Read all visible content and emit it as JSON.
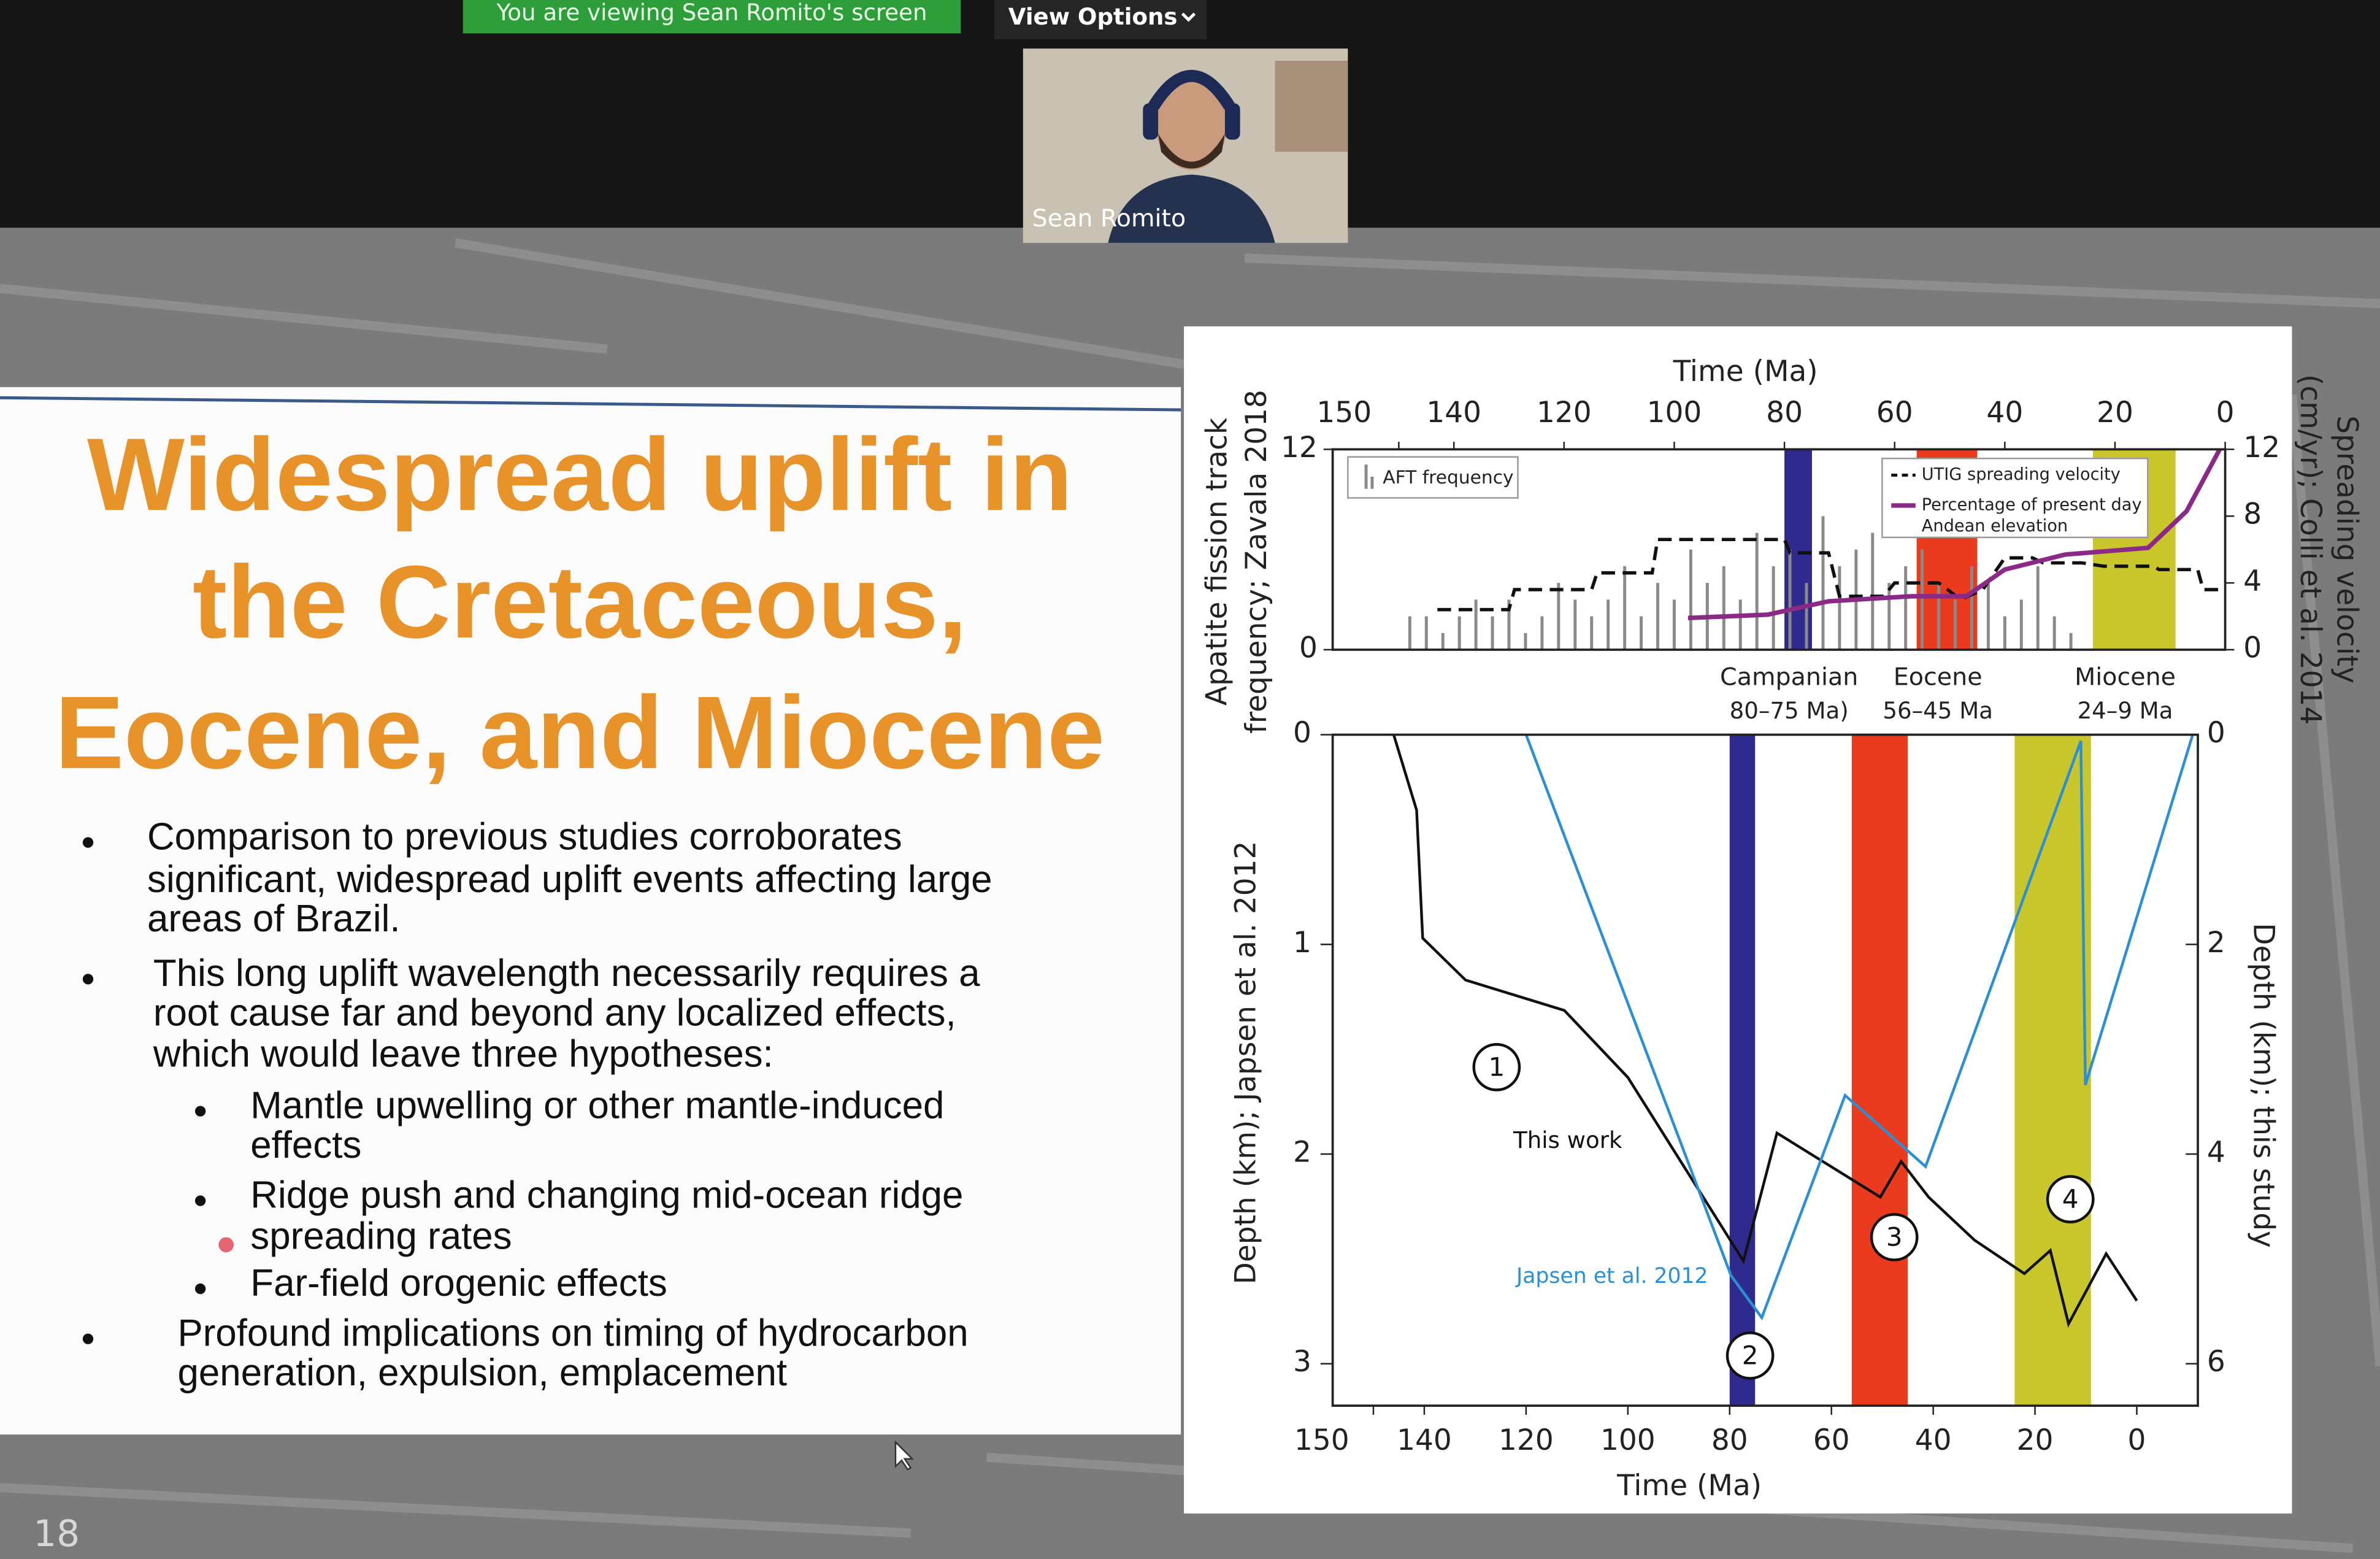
{
  "zoom": {
    "banner": "You are viewing Sean Romito's screen",
    "view_options": "View Options",
    "participant": "Sean Romito"
  },
  "slide": {
    "title_lines": [
      "Widespread uplift in",
      "the Cretaceous,",
      "Eocene, and Miocene"
    ],
    "bullets": [
      {
        "level": 1,
        "lines": [
          "Comparison to previous studies corroborates",
          "significant, widespread uplift events affecting large",
          "areas of Brazil."
        ]
      },
      {
        "level": 1,
        "lines": [
          "This long uplift wavelength necessarily requires a",
          "root cause far and beyond any localized effects,",
          "which would leave three hypotheses:"
        ]
      },
      {
        "level": 2,
        "lines": [
          "Mantle upwelling or other mantle-induced",
          "effects"
        ]
      },
      {
        "level": 2,
        "lines": [
          "Ridge push and changing mid-ocean ridge",
          "spreading rates"
        ]
      },
      {
        "level": 2,
        "lines": [
          "Far-field orogenic effects"
        ]
      },
      {
        "level": 1,
        "lines": [
          "Profound implications on timing of hydrocarbon",
          "generation, expulsion, emplacement"
        ]
      }
    ],
    "page_number": "18"
  },
  "chart_data": [
    {
      "type": "bar_line",
      "xlabel": "Time (Ma)",
      "ylabel": [
        "Apatite fission track",
        "frequency; Zavala 2018"
      ],
      "y2label": [
        "Spreading velocity",
        "(cm/yr); Colli et al. 2014"
      ],
      "xlim": [
        162,
        0
      ],
      "xticks": [
        150,
        140,
        120,
        100,
        80,
        60,
        40,
        20,
        0
      ],
      "ylim": [
        0,
        12
      ],
      "yticks": [
        0,
        12
      ],
      "y2lim": [
        0,
        12
      ],
      "y2ticks": [
        0,
        4,
        8,
        12
      ],
      "bands": [
        {
          "name": "Campanian",
          "range_label": "80–75 Ma)",
          "start": 80,
          "end": 75,
          "color": "#2f2a8e"
        },
        {
          "name": "Eocene",
          "range_label": "56–45 Ma",
          "start": 56,
          "end": 45,
          "color": "#ea3b1f"
        },
        {
          "name": "Miocene",
          "range_label": "24–9 Ma",
          "start": 24,
          "end": 9,
          "color": "#c9c62c"
        }
      ],
      "series": [
        {
          "name": "AFT frequency",
          "kind": "bar",
          "color": "#8a8a8a",
          "x": [
            148,
            145,
            142,
            139,
            136,
            133,
            130,
            127,
            124,
            121,
            118,
            115,
            112,
            109,
            106,
            103,
            100,
            97,
            94,
            91,
            88,
            85,
            82,
            79,
            76,
            73,
            70,
            67,
            64,
            61,
            58,
            55,
            52,
            49,
            46,
            43,
            40,
            37,
            34,
            31,
            28
          ],
          "values": [
            2,
            2,
            1,
            2,
            3,
            2,
            3,
            1,
            2,
            4,
            3,
            2,
            3,
            5,
            2,
            4,
            3,
            6,
            4,
            5,
            3,
            7,
            5,
            6,
            4,
            8,
            5,
            6,
            7,
            4,
            5,
            6,
            4,
            3,
            5,
            4,
            2,
            3,
            5,
            2,
            1
          ]
        },
        {
          "name": "UTIG spreading velocity",
          "kind": "line",
          "dashed": true,
          "color": "#111111",
          "axis": "y2",
          "x": [
            143,
            130,
            129,
            115,
            114,
            104,
            103,
            80,
            79,
            72,
            70,
            62,
            60,
            52,
            48,
            44,
            40,
            35,
            33,
            26,
            22,
            13,
            12,
            5,
            4,
            0
          ],
          "values": [
            2.4,
            2.4,
            3.6,
            3.6,
            4.6,
            4.6,
            6.6,
            6.6,
            5.8,
            5.8,
            3.2,
            3.2,
            4,
            4,
            3,
            3.6,
            5.5,
            5.5,
            5.2,
            5.2,
            5,
            5,
            4.8,
            4.8,
            3.6,
            3.6
          ]
        },
        {
          "name": "Percentage of present day Andean elevation",
          "kind": "line",
          "dashed": false,
          "color": "#8b2a86",
          "axis": "y2",
          "x": [
            97.5,
            83,
            72,
            57,
            47,
            40,
            29,
            14,
            7,
            1
          ],
          "values": [
            1.9,
            2.1,
            2.9,
            3.2,
            3.2,
            4.8,
            5.7,
            6.1,
            8.3,
            12
          ]
        }
      ]
    },
    {
      "type": "line",
      "xlabel": "Time (Ma)",
      "ylabel": "Depth (km); Japsen et al. 2012",
      "y2label": "Depth (km); this study",
      "xlim": [
        158,
        -12
      ],
      "xticks": [
        150,
        140,
        120,
        100,
        80,
        60,
        40,
        20,
        0
      ],
      "ylim": [
        3.2,
        0
      ],
      "yticks": [
        0,
        1,
        2,
        3
      ],
      "y2lim": [
        6.4,
        0
      ],
      "y2ticks": [
        0,
        2,
        4,
        6
      ],
      "annotations": [
        "1",
        "2",
        "3",
        "4"
      ],
      "series": [
        {
          "name": "This work",
          "color": "#111111",
          "axis": "y2",
          "x": [
            146,
            141.5,
            140.3,
            131.9,
            112.5,
            100,
            77.3,
            70.7,
            50.4,
            46.3,
            40.9,
            31.9,
            22.1,
            17,
            13.4,
            6,
            0
          ],
          "values": [
            0,
            0.72,
            1.94,
            2.34,
            2.63,
            3.27,
            5.02,
            3.8,
            4.41,
            4.07,
            4.41,
            4.82,
            5.14,
            4.92,
            5.62,
            4.95,
            5.4
          ]
        },
        {
          "name": "Japsen et al. 2012",
          "color": "#2a8fd6",
          "x": [
            120,
            79.7,
            73.7,
            57.3,
            41.5,
            11,
            10.1,
            -11
          ],
          "values": [
            0,
            2.58,
            2.78,
            1.72,
            2.06,
            0.03,
            1.67,
            0
          ]
        }
      ]
    }
  ]
}
